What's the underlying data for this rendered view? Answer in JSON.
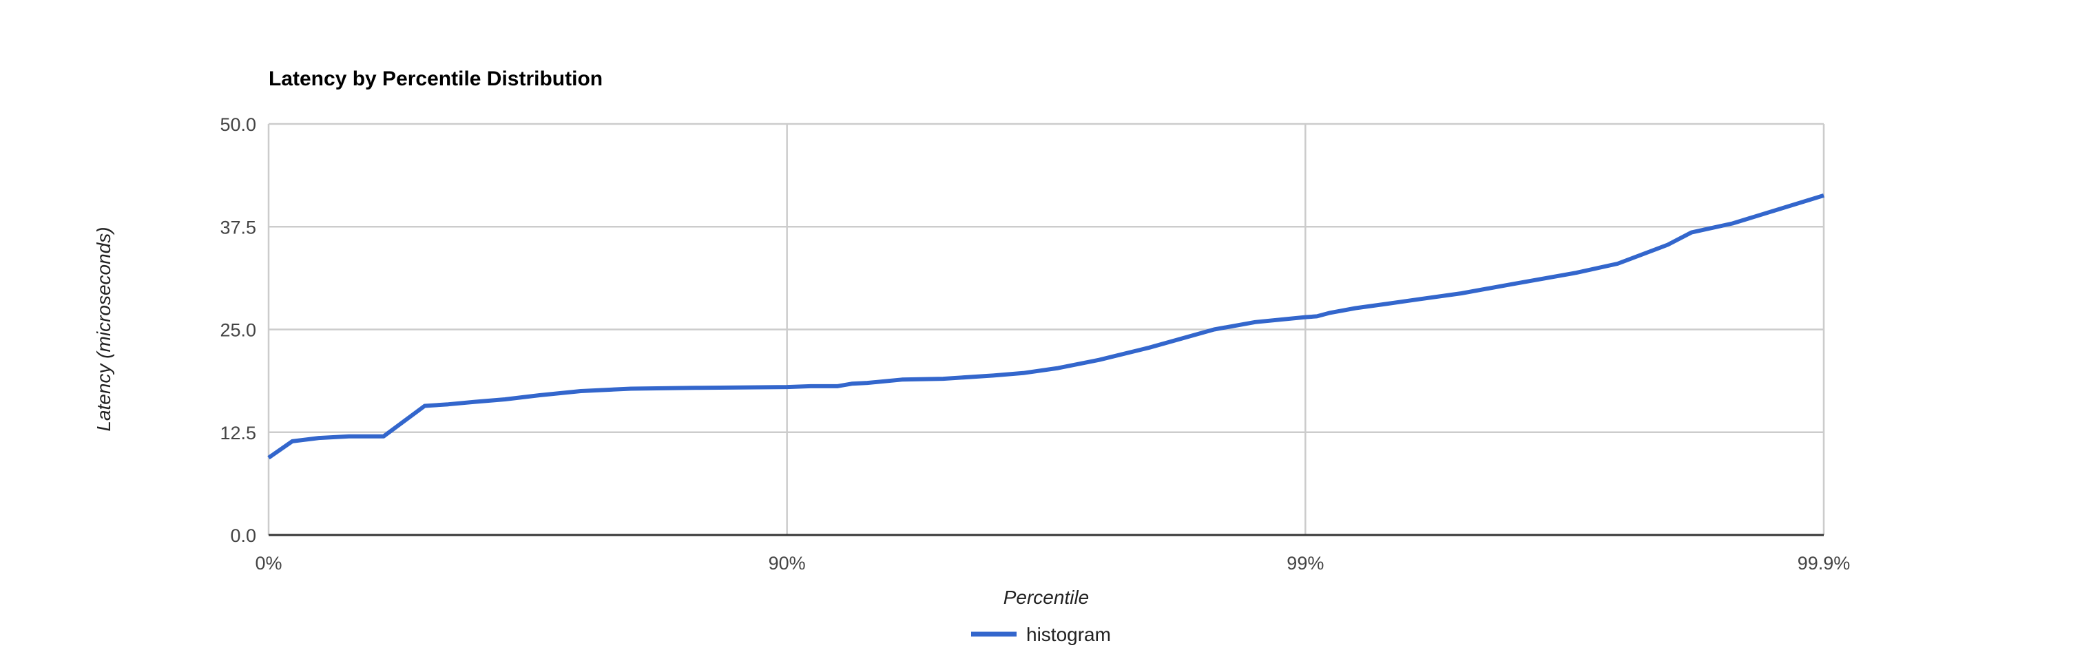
{
  "style": {
    "background": "#ffffff",
    "series_color": "#3366cc",
    "gridline_color": "#cccccc",
    "baseline_color": "#333333",
    "title_color": "#000000",
    "tick_label_color": "#444444",
    "axis_title_color": "#222222",
    "legend_text_color": "#222222"
  },
  "chart_data": {
    "type": "line",
    "title": "Latency by Percentile Distribution",
    "xlabel": "Percentile",
    "ylabel": "Latency (microseconds)",
    "legend_position": "bottom",
    "grid": true,
    "x_axis": {
      "scale": "logarithmic-percentile (equal spacing per decade of 1/(1-p))",
      "min_percentile": 0,
      "max_percentile": 99.9,
      "ticks": [
        {
          "percentile": 0,
          "label": "0%"
        },
        {
          "percentile": 90,
          "label": "90%"
        },
        {
          "percentile": 99,
          "label": "99%"
        },
        {
          "percentile": 99.9,
          "label": "99.9%"
        }
      ]
    },
    "y_axis": {
      "min": 0,
      "max": 50,
      "ticks": [
        {
          "value": 0,
          "label": "0.0"
        },
        {
          "value": 12.5,
          "label": "12.5"
        },
        {
          "value": 25,
          "label": "25.0"
        },
        {
          "value": 37.5,
          "label": "37.5"
        },
        {
          "value": 50,
          "label": "50.0"
        }
      ]
    },
    "legend": [
      {
        "name": "histogram",
        "color": "#3366cc"
      }
    ],
    "series": [
      {
        "name": "histogram",
        "color": "#3366cc",
        "points": [
          {
            "percentile": 0,
            "latency_us": 9.4
          },
          {
            "percentile": 10,
            "latency_us": 11.4
          },
          {
            "percentile": 20,
            "latency_us": 11.8
          },
          {
            "percentile": 30,
            "latency_us": 12.0
          },
          {
            "percentile": 40,
            "latency_us": 12.0
          },
          {
            "percentile": 50,
            "latency_us": 15.7
          },
          {
            "percentile": 55,
            "latency_us": 15.9
          },
          {
            "percentile": 60,
            "latency_us": 16.2
          },
          {
            "percentile": 65,
            "latency_us": 16.5
          },
          {
            "percentile": 70,
            "latency_us": 17.0
          },
          {
            "percentile": 75,
            "latency_us": 17.5
          },
          {
            "percentile": 80,
            "latency_us": 17.8
          },
          {
            "percentile": 85,
            "latency_us": 17.9
          },
          {
            "percentile": 90,
            "latency_us": 18.0
          },
          {
            "percentile": 91,
            "latency_us": 18.1
          },
          {
            "percentile": 92,
            "latency_us": 18.1
          },
          {
            "percentile": 92.5,
            "latency_us": 18.4
          },
          {
            "percentile": 93,
            "latency_us": 18.5
          },
          {
            "percentile": 94,
            "latency_us": 18.9
          },
          {
            "percentile": 95,
            "latency_us": 19.0
          },
          {
            "percentile": 96,
            "latency_us": 19.4
          },
          {
            "percentile": 96.5,
            "latency_us": 19.7
          },
          {
            "percentile": 97,
            "latency_us": 20.3
          },
          {
            "percentile": 97.5,
            "latency_us": 21.3
          },
          {
            "percentile": 98,
            "latency_us": 22.8
          },
          {
            "percentile": 98.5,
            "latency_us": 25.0
          },
          {
            "percentile": 98.75,
            "latency_us": 25.9
          },
          {
            "percentile": 99,
            "latency_us": 26.5
          },
          {
            "percentile": 99.05,
            "latency_us": 26.6
          },
          {
            "percentile": 99.1,
            "latency_us": 27.0
          },
          {
            "percentile": 99.2,
            "latency_us": 27.6
          },
          {
            "percentile": 99.3,
            "latency_us": 28.1
          },
          {
            "percentile": 99.4,
            "latency_us": 28.7
          },
          {
            "percentile": 99.5,
            "latency_us": 29.4
          },
          {
            "percentile": 99.6,
            "latency_us": 30.5
          },
          {
            "percentile": 99.7,
            "latency_us": 31.9
          },
          {
            "percentile": 99.75,
            "latency_us": 33.0
          },
          {
            "percentile": 99.8,
            "latency_us": 35.3
          },
          {
            "percentile": 99.82,
            "latency_us": 36.8
          },
          {
            "percentile": 99.85,
            "latency_us": 37.9
          },
          {
            "percentile": 99.9,
            "latency_us": 41.3
          }
        ]
      }
    ]
  }
}
